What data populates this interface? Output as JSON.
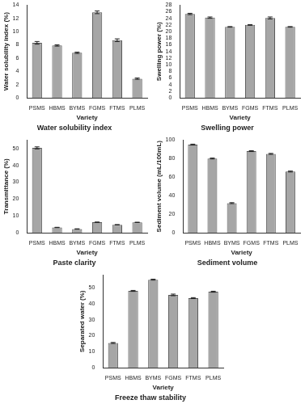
{
  "chart_data": [
    {
      "type": "bar",
      "title": "Water solubility index",
      "x_label": "Variety",
      "y_label": "Water solubility index (%)",
      "categories": [
        "PSMS",
        "HBMS",
        "BYMS",
        "FGMS",
        "FTMS",
        "PLMS"
      ],
      "values": [
        8.3,
        7.9,
        6.8,
        12.9,
        8.7,
        2.9
      ],
      "errors": [
        0.2,
        0.1,
        0.1,
        0.2,
        0.2,
        0.1
      ],
      "color": "#a6a6a6",
      "ylim": [
        0,
        14
      ],
      "yticks": [
        0,
        2,
        4,
        6,
        8,
        10,
        12,
        14
      ],
      "grid": false
    },
    {
      "type": "bar",
      "title": "Swelling power",
      "x_label": "Variety",
      "y_label": "Swelling power (%)",
      "categories": [
        "PSMS",
        "HBMS",
        "BYMS",
        "FGMS",
        "FTMS",
        "PLMS"
      ],
      "values": [
        25.3,
        24.2,
        21.4,
        22.0,
        24.1,
        21.4
      ],
      "errors": [
        0.2,
        0.2,
        0.1,
        0.1,
        0.3,
        0.1
      ],
      "color": "#a6a6a6",
      "ylim": [
        0,
        28
      ],
      "yticks": [
        0,
        2,
        4,
        6,
        8,
        10,
        12,
        14,
        16,
        18,
        20,
        22,
        24,
        26,
        28
      ],
      "grid": false
    },
    {
      "type": "bar",
      "title": "Paste clarity",
      "x_label": "Variety",
      "y_label": "Transmittance (%)",
      "categories": [
        "PSMS",
        "HBMS",
        "BYMS",
        "FGMS",
        "FTMS",
        "PLMS"
      ],
      "values": [
        50.3,
        3.2,
        2.3,
        6.3,
        4.8,
        6.2
      ],
      "errors": [
        0.6,
        0.1,
        0.1,
        0.1,
        0.1,
        0.1
      ],
      "color": "#a6a6a6",
      "ylim": [
        0,
        55
      ],
      "yticks": [
        0,
        10,
        20,
        30,
        40,
        50
      ],
      "grid": false
    },
    {
      "type": "bar",
      "title": "Sediment volume",
      "x_label": "Variety",
      "y_label": "Sediment volume (mL/100mL)",
      "categories": [
        "PSMS",
        "HBMS",
        "BYMS",
        "FGMS",
        "FTMS",
        "PLMS"
      ],
      "values": [
        95,
        80,
        32,
        88,
        85,
        66
      ],
      "errors": [
        0.5,
        0.5,
        0.5,
        0.5,
        0.5,
        0.5
      ],
      "color": "#a6a6a6",
      "ylim": [
        0,
        100
      ],
      "yticks": [
        0,
        20,
        40,
        60,
        80,
        100
      ],
      "grid": false
    },
    {
      "type": "bar",
      "title": "Freeze thaw stability",
      "x_label": "Variety",
      "y_label": "Separated water (%)",
      "categories": [
        "PSMS",
        "HBMS",
        "BYMS",
        "FGMS",
        "FTMS",
        "PLMS"
      ],
      "values": [
        15.5,
        48.0,
        55.0,
        45.5,
        43.5,
        47.5
      ],
      "errors": [
        0.3,
        0.3,
        0.3,
        0.5,
        0.3,
        0.3
      ],
      "color": "#a6a6a6",
      "ylim": [
        0,
        58
      ],
      "yticks": [
        0,
        10,
        20,
        30,
        40,
        50
      ],
      "grid": false
    }
  ]
}
